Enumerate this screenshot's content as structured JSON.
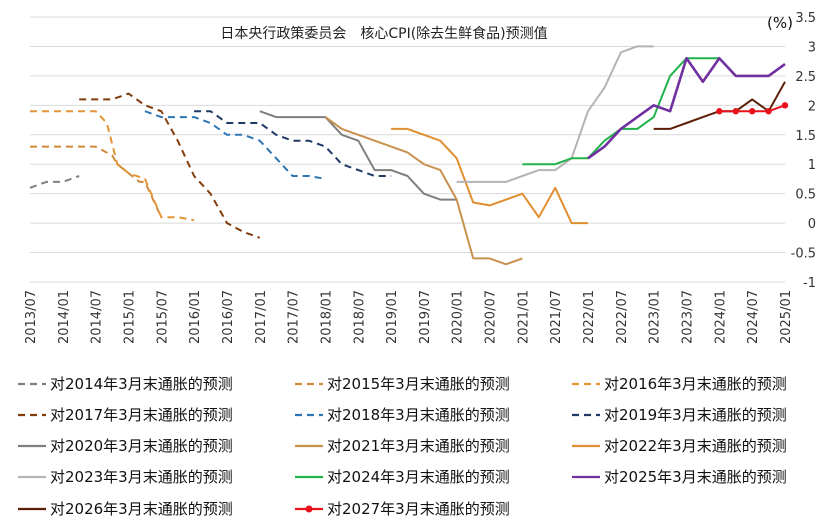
{
  "chart_data": {
    "type": "line",
    "title": "日本央行政策委员会　核心CPI(除去生鲜食品)预测值",
    "unit": "(%)",
    "xlabel": "",
    "ylabel": "",
    "ylim": [
      -1,
      3.5
    ],
    "xlim": [
      2013.5,
      2025.0
    ],
    "y_ticks": [
      "-1",
      "-0.5",
      "0",
      "0.5",
      "1",
      "1.5",
      "2",
      "2.5",
      "3",
      "3.5"
    ],
    "x_ticks": [
      "2013/07",
      "2014/01",
      "2014/07",
      "2015/01",
      "2015/07",
      "2016/01",
      "2016/07",
      "2017/01",
      "2017/07",
      "2018/01",
      "2018/07",
      "2019/01",
      "2019/07",
      "2020/01",
      "2020/07",
      "2021/01",
      "2021/07",
      "2022/01",
      "2022/07",
      "2023/01",
      "2023/07",
      "2024/01",
      "2024/07",
      "2025/01"
    ],
    "grid": true,
    "legend_position": "bottom",
    "series": [
      {
        "name": "对2014年3月末通胀的预测",
        "color": "#7f7f7f",
        "dash": true,
        "marker": false,
        "x": [
          2013.5,
          2013.75,
          2014.0,
          2014.25
        ],
        "y": [
          0.6,
          0.7,
          0.7,
          0.8
        ]
      },
      {
        "name": "对2015年3月末通胀的预测",
        "color": "#d08a3a",
        "dash": true,
        "marker": false,
        "x": [
          2013.5,
          2013.75,
          2014.0,
          2014.25,
          2014.5,
          2014.75,
          2014.83,
          2015.0,
          2015.17,
          2015.25,
          2015.5
        ],
        "y": [
          1.3,
          1.3,
          1.3,
          1.3,
          1.3,
          1.15,
          1.0,
          0.85,
          0.7,
          0.7,
          0.1
        ]
      },
      {
        "name": "对2016年3月末通胀的预测",
        "color": "#e39435",
        "dash": true,
        "marker": false,
        "x": [
          2013.5,
          2013.75,
          2014.0,
          2014.25,
          2014.5,
          2014.67,
          2014.83,
          2015.0,
          2015.25,
          2015.5,
          2015.75,
          2016.0
        ],
        "y": [
          1.9,
          1.9,
          1.9,
          1.9,
          1.9,
          1.7,
          1.0,
          0.85,
          0.75,
          0.1,
          0.1,
          0.05
        ]
      },
      {
        "name": "对2017年3月末通胀的预测",
        "color": "#843c0c",
        "dash": true,
        "marker": false,
        "x": [
          2014.25,
          2014.5,
          2014.75,
          2015.0,
          2015.25,
          2015.5,
          2015.75,
          2016.0,
          2016.25,
          2016.5,
          2016.75,
          2017.0
        ],
        "y": [
          2.1,
          2.1,
          2.1,
          2.2,
          2.0,
          1.9,
          1.4,
          0.8,
          0.5,
          0.0,
          -0.15,
          -0.25
        ]
      },
      {
        "name": "对2018年3月末通胀的预测",
        "color": "#2e75b6",
        "dash": true,
        "marker": false,
        "x": [
          2015.25,
          2015.5,
          2015.75,
          2016.0,
          2016.25,
          2016.5,
          2016.75,
          2017.0,
          2017.25,
          2017.5,
          2017.75,
          2018.0
        ],
        "y": [
          1.9,
          1.8,
          1.8,
          1.8,
          1.7,
          1.5,
          1.5,
          1.4,
          1.1,
          0.8,
          0.8,
          0.75
        ]
      },
      {
        "name": "对2019年3月末通胀的预测",
        "color": "#203864",
        "dash": true,
        "marker": false,
        "x": [
          2016.0,
          2016.25,
          2016.5,
          2016.75,
          2017.0,
          2017.25,
          2017.5,
          2017.75,
          2018.0,
          2018.25,
          2018.5,
          2018.75,
          2019.0
        ],
        "y": [
          1.9,
          1.9,
          1.7,
          1.7,
          1.7,
          1.5,
          1.4,
          1.4,
          1.3,
          1.0,
          0.9,
          0.8,
          0.8
        ]
      },
      {
        "name": "对2020年3月末通胀的预测",
        "color": "#7f7f7f",
        "dash": false,
        "marker": false,
        "x": [
          2017.0,
          2017.25,
          2017.5,
          2017.75,
          2018.0,
          2018.25,
          2018.5,
          2018.75,
          2019.0,
          2019.25,
          2019.5,
          2019.75,
          2020.0
        ],
        "y": [
          1.9,
          1.8,
          1.8,
          1.8,
          1.8,
          1.5,
          1.4,
          0.9,
          0.9,
          0.8,
          0.5,
          0.4,
          0.4
        ]
      },
      {
        "name": "对2021年3月末通胀的预测",
        "color": "#c9914e",
        "dash": false,
        "marker": false,
        "x": [
          2018.0,
          2018.25,
          2018.5,
          2018.75,
          2019.0,
          2019.25,
          2019.5,
          2019.75,
          2020.0,
          2020.25,
          2020.5,
          2020.75,
          2021.0
        ],
        "y": [
          1.8,
          1.6,
          1.5,
          1.4,
          1.3,
          1.2,
          1.0,
          0.9,
          0.4,
          -0.6,
          -0.6,
          -0.7,
          -0.6
        ]
      },
      {
        "name": "对2022年3月末通胀的预测",
        "color": "#e08e30",
        "dash": false,
        "marker": false,
        "x": [
          2019.0,
          2019.25,
          2019.5,
          2019.75,
          2020.0,
          2020.25,
          2020.5,
          2020.75,
          2021.0,
          2021.25,
          2021.5,
          2021.75,
          2022.0
        ],
        "y": [
          1.6,
          1.6,
          1.5,
          1.4,
          1.1,
          0.35,
          0.3,
          0.4,
          0.5,
          0.1,
          0.6,
          0.0,
          0.0
        ]
      },
      {
        "name": "对2023年3月末通胀的预测",
        "color": "#b4b4b4",
        "dash": false,
        "marker": false,
        "x": [
          2020.0,
          2020.25,
          2020.5,
          2020.75,
          2021.0,
          2021.25,
          2021.5,
          2021.75,
          2022.0,
          2022.25,
          2022.5,
          2022.75,
          2023.0
        ],
        "y": [
          0.7,
          0.7,
          0.7,
          0.7,
          0.8,
          0.9,
          0.9,
          1.1,
          1.9,
          2.3,
          2.9,
          3.0,
          3.0
        ]
      },
      {
        "name": "对2024年3月末通胀的预测",
        "color": "#21b24b",
        "dash": false,
        "marker": false,
        "x": [
          2021.0,
          2021.25,
          2021.5,
          2021.75,
          2022.0,
          2022.25,
          2022.5,
          2022.75,
          2023.0,
          2023.25,
          2023.5,
          2023.75,
          2024.0
        ],
        "y": [
          1.0,
          1.0,
          1.0,
          1.1,
          1.1,
          1.4,
          1.6,
          1.6,
          1.8,
          2.5,
          2.8,
          2.8,
          2.8
        ]
      },
      {
        "name": "对2025年3月末通胀的预测",
        "color": "#7030a0",
        "dash": false,
        "marker": false,
        "x": [
          2022.0,
          2022.25,
          2022.5,
          2022.75,
          2023.0,
          2023.25,
          2023.5,
          2023.75,
          2024.0,
          2024.25,
          2024.5,
          2024.75,
          2025.0
        ],
        "y": [
          1.1,
          1.3,
          1.6,
          1.8,
          2.0,
          1.9,
          2.8,
          2.4,
          2.8,
          2.5,
          2.5,
          2.5,
          2.7
        ]
      },
      {
        "name": "对2026年3月末通胀的预测",
        "color": "#5b1e06",
        "dash": false,
        "marker": false,
        "x": [
          2023.0,
          2023.25,
          2023.5,
          2023.75,
          2024.0,
          2024.25,
          2024.5,
          2024.75,
          2025.0
        ],
        "y": [
          1.6,
          1.6,
          1.7,
          1.8,
          1.9,
          1.9,
          2.1,
          1.9,
          2.4
        ]
      },
      {
        "name": "对2027年3月末通胀的预测",
        "color": "#e8121a",
        "dash": false,
        "marker": true,
        "x": [
          2024.0,
          2024.25,
          2024.5,
          2024.75,
          2025.0
        ],
        "y": [
          1.9,
          1.9,
          1.9,
          1.9,
          2.0
        ]
      }
    ]
  }
}
